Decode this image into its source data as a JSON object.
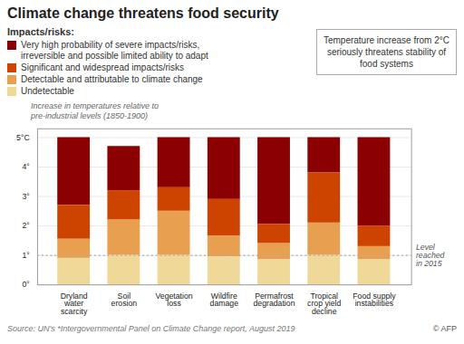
{
  "chart_data": {
    "type": "bar",
    "stacked": true,
    "title": "Climate change threatens food security",
    "subtitle": "Impacts/risks:",
    "y_label": "Increase in temperatures relative to\npre-industrial levels (1850-1900)",
    "categories": [
      "Dryland\nwater\nscarcity",
      "Soil\nerosion",
      "Vegetation\nloss",
      "Wildfire\ndamage",
      "Permafrost\ndegradation",
      "Tropical\ncrop yield\ndecline",
      "Food supply\ninstabilities"
    ],
    "series": [
      {
        "name": "Very high probability of severe impacts/risks,\nirreversible and possible limited ability to adapt",
        "color": "#8b0000",
        "values": [
          2.3,
          1.5,
          1.7,
          2.1,
          2.95,
          1.2,
          3.0
        ]
      },
      {
        "name": "Significant and widespread impacts/risks",
        "color": "#cc4400",
        "values": [
          1.15,
          1.0,
          0.8,
          1.25,
          0.65,
          1.7,
          0.7
        ]
      },
      {
        "name": "Detectable and attributable to climate change",
        "color": "#e8a050",
        "values": [
          0.65,
          1.2,
          1.5,
          0.7,
          0.55,
          1.1,
          0.45
        ]
      },
      {
        "name": "Undetectable",
        "color": "#f0d898",
        "values": [
          0.9,
          1.0,
          1.0,
          0.95,
          0.85,
          1.0,
          0.85
        ]
      }
    ],
    "ylim": [
      0,
      5.3
    ],
    "yticks": [
      {
        "value": 0,
        "label": "0°"
      },
      {
        "value": 1,
        "label": "1°"
      },
      {
        "value": 2,
        "label": "2°"
      },
      {
        "value": 3,
        "label": "3°"
      },
      {
        "value": 4,
        "label": "4°"
      },
      {
        "value": 5,
        "label": "5°C"
      }
    ],
    "grid": true,
    "legend": "top-left",
    "reference_line": {
      "y": 1.0,
      "label": "Level\nreached\nin 2015",
      "color": "#aaaaaa"
    },
    "annotations": [
      "Temperature increase from 2°C\nseriously threatens stability of\nfood systems"
    ],
    "source": "Source: UN's *Intergovernmental Panel on Climate Change report, August 2019",
    "credit": "© AFP"
  }
}
